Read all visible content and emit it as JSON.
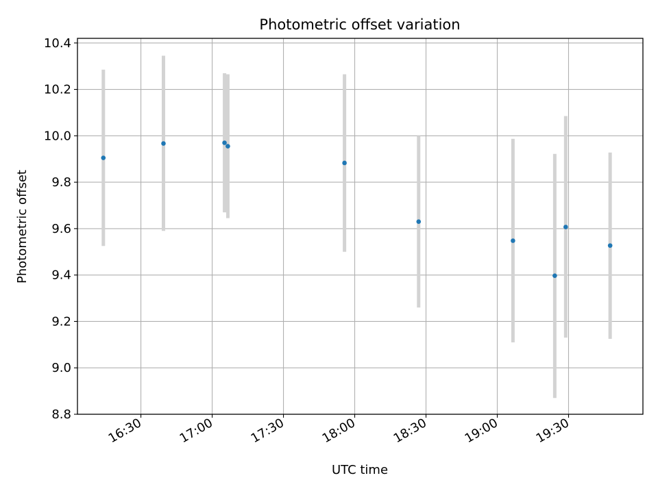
{
  "chart_data": {
    "type": "scatter",
    "title": "Photometric offset variation",
    "xlabel": "UTC time",
    "ylabel": "Photometric offset",
    "ylim": [
      8.8,
      10.42
    ],
    "xlim_minutes": [
      963.3,
      1201.3
    ],
    "grid": true,
    "marker_color": "#1f77b4",
    "errorbar_color": "#d3d3d3",
    "x_ticks": [
      {
        "minutes": 990,
        "label": "16:30"
      },
      {
        "minutes": 1020,
        "label": "17:00"
      },
      {
        "minutes": 1050,
        "label": "17:30"
      },
      {
        "minutes": 1080,
        "label": "18:00"
      },
      {
        "minutes": 1110,
        "label": "18:30"
      },
      {
        "minutes": 1140,
        "label": "19:00"
      },
      {
        "minutes": 1170,
        "label": "19:30"
      }
    ],
    "y_ticks": [
      {
        "value": 8.8,
        "label": "8.8"
      },
      {
        "value": 9.0,
        "label": "9.0"
      },
      {
        "value": 9.2,
        "label": "9.2"
      },
      {
        "value": 9.4,
        "label": "9.4"
      },
      {
        "value": 9.6,
        "label": "9.6"
      },
      {
        "value": 9.8,
        "label": "9.8"
      },
      {
        "value": 10.0,
        "label": "10.0"
      },
      {
        "value": 10.2,
        "label": "10.2"
      },
      {
        "value": 10.4,
        "label": "10.4"
      }
    ],
    "points": [
      {
        "time": "16:13",
        "minutes": 974.2,
        "y": 9.905,
        "low": 9.525,
        "high": 10.285
      },
      {
        "time": "16:38",
        "minutes": 999.5,
        "y": 9.967,
        "low": 9.59,
        "high": 10.345
      },
      {
        "time": "17:05",
        "minutes": 1025.2,
        "y": 9.97,
        "low": 9.67,
        "high": 10.27
      },
      {
        "time": "17:06",
        "minutes": 1026.6,
        "y": 9.955,
        "low": 9.645,
        "high": 10.265
      },
      {
        "time": "17:55",
        "minutes": 1075.7,
        "y": 9.883,
        "low": 9.5,
        "high": 10.265
      },
      {
        "time": "18:26",
        "minutes": 1106.9,
        "y": 9.63,
        "low": 9.26,
        "high": 10.0
      },
      {
        "time": "19:05",
        "minutes": 1146.6,
        "y": 9.548,
        "low": 9.11,
        "high": 9.987
      },
      {
        "time": "19:23",
        "minutes": 1164.2,
        "y": 9.397,
        "low": 8.87,
        "high": 9.922
      },
      {
        "time": "19:27",
        "minutes": 1168.8,
        "y": 9.607,
        "low": 9.13,
        "high": 10.085
      },
      {
        "time": "19:46",
        "minutes": 1187.5,
        "y": 9.527,
        "low": 9.125,
        "high": 9.928
      }
    ]
  }
}
